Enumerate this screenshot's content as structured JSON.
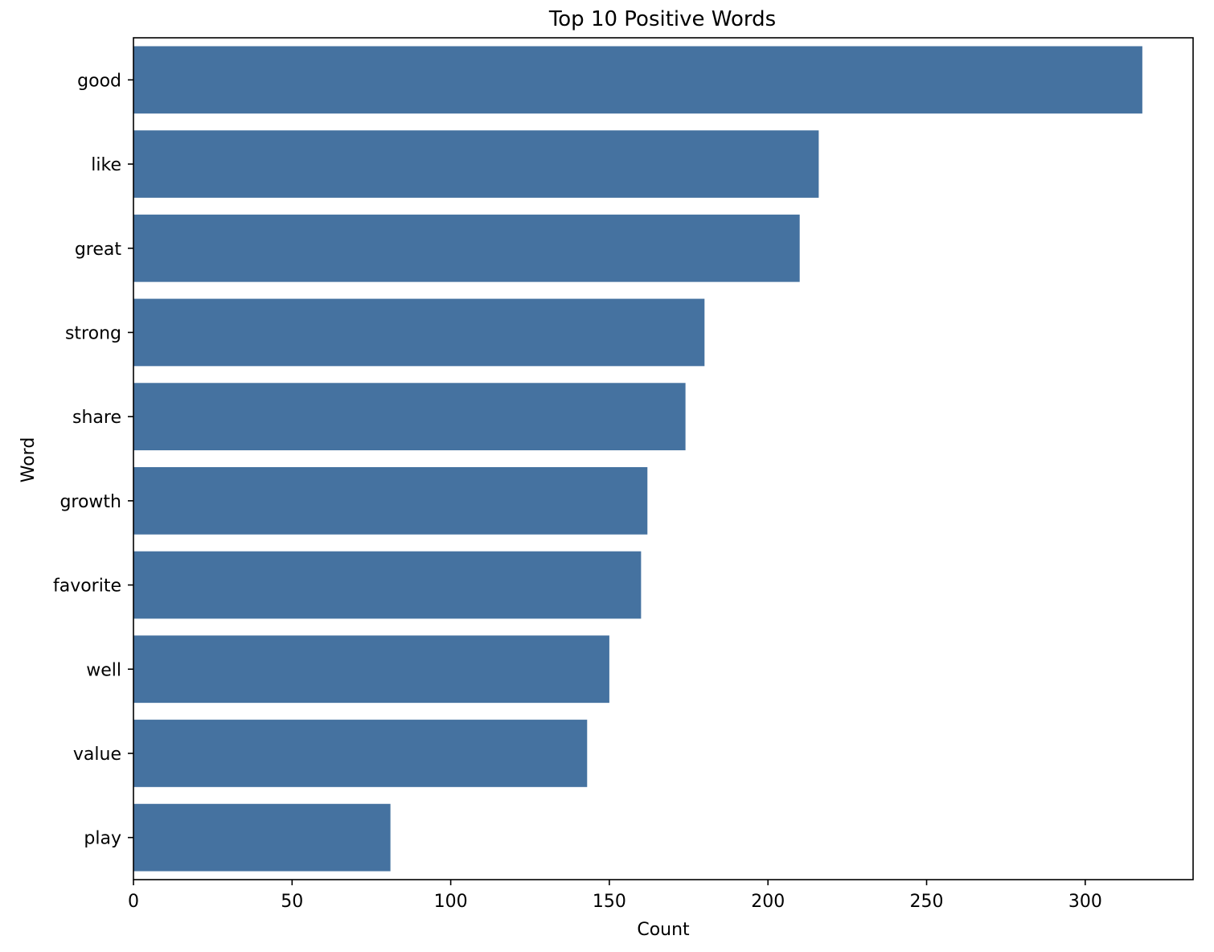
{
  "chart_data": {
    "type": "bar",
    "orientation": "horizontal",
    "title": "Top 10 Positive Words",
    "xlabel": "Count",
    "ylabel": "Word",
    "categories": [
      "good",
      "like",
      "great",
      "strong",
      "share",
      "growth",
      "favorite",
      "well",
      "value",
      "play"
    ],
    "values": [
      318,
      216,
      210,
      180,
      174,
      162,
      160,
      150,
      143,
      81
    ],
    "xlim": [
      0,
      334
    ],
    "xticks": [
      0,
      50,
      100,
      150,
      200,
      250,
      300
    ],
    "grid": false,
    "legend": "none",
    "bar_color": "#4572a0"
  }
}
